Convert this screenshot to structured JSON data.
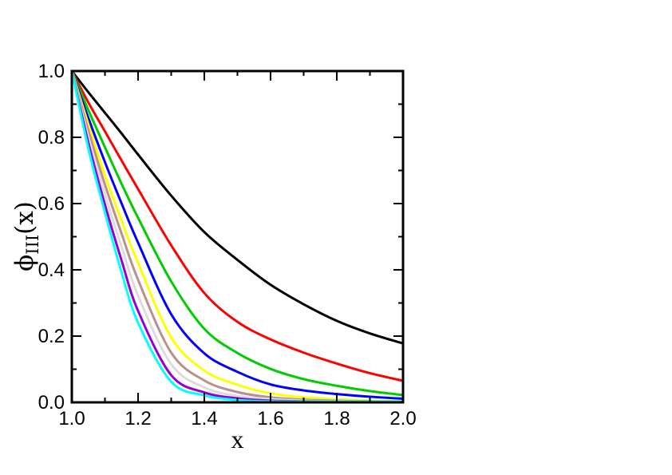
{
  "figure": {
    "background": "#ffffff",
    "frame_color": "#000000",
    "tick_color": "#000000"
  },
  "chart_data": {
    "type": "line",
    "title": "",
    "xlabel": "x",
    "ylabel": "ϕ_III(x)",
    "ylabel_parts": {
      "symbol": "ϕ",
      "subscript": "III",
      "suffix": "(x)"
    },
    "xlim": [
      1.0,
      2.0
    ],
    "ylim": [
      0.0,
      1.0
    ],
    "grid": false,
    "legend_position": "none",
    "x_major_ticks": [
      1.0,
      1.2,
      1.4,
      1.6,
      1.8,
      2.0
    ],
    "x_tick_labels": [
      "1.0",
      "1.2",
      "1.4",
      "1.6",
      "1.8",
      "2.0"
    ],
    "x_minor_ticks": [
      1.1,
      1.3,
      1.5,
      1.7,
      1.9
    ],
    "y_major_ticks": [
      0.0,
      0.2,
      0.4,
      0.6,
      0.8,
      1.0
    ],
    "y_tick_labels": [
      "0.0",
      "0.2",
      "0.4",
      "0.6",
      "0.8",
      "1.0"
    ],
    "y_minor_ticks": [
      0.1,
      0.3,
      0.5,
      0.7,
      0.9
    ],
    "x": [
      1.0,
      1.05,
      1.1,
      1.15,
      1.2,
      1.3,
      1.4,
      1.5,
      1.6,
      1.7,
      1.8,
      1.9,
      2.0
    ],
    "series": [
      {
        "name": "black",
        "color": "#000000",
        "values": [
          1.0,
          0.936,
          0.874,
          0.812,
          0.748,
          0.624,
          0.514,
          0.43,
          0.355,
          0.296,
          0.246,
          0.208,
          0.178
        ]
      },
      {
        "name": "red",
        "color": "#ff0000",
        "values": [
          1.0,
          0.905,
          0.818,
          0.73,
          0.644,
          0.474,
          0.33,
          0.243,
          0.19,
          0.15,
          0.117,
          0.088,
          0.065
        ]
      },
      {
        "name": "green",
        "color": "#00cc00",
        "values": [
          1.0,
          0.882,
          0.77,
          0.66,
          0.557,
          0.365,
          0.222,
          0.149,
          0.101,
          0.07,
          0.05,
          0.034,
          0.022
        ]
      },
      {
        "name": "blue",
        "color": "#0000ff",
        "values": [
          1.0,
          0.858,
          0.725,
          0.601,
          0.482,
          0.266,
          0.148,
          0.092,
          0.054,
          0.036,
          0.025,
          0.017,
          0.011
        ]
      },
      {
        "name": "yellow",
        "color": "#ffff00",
        "values": [
          1.0,
          0.838,
          0.685,
          0.549,
          0.421,
          0.196,
          0.096,
          0.053,
          0.027,
          0.015,
          0.009,
          0.005,
          0.003
        ]
      },
      {
        "name": "brown",
        "color": "#bc8f8f",
        "values": [
          1.0,
          0.82,
          0.657,
          0.51,
          0.37,
          0.15,
          0.066,
          0.031,
          0.015,
          0.008,
          0.005,
          0.003,
          0.002
        ]
      },
      {
        "name": "grey",
        "color": "#dcdcdc",
        "values": [
          1.0,
          0.801,
          0.628,
          0.47,
          0.322,
          0.115,
          0.045,
          0.019,
          0.01,
          0.005,
          0.003,
          0.002,
          0.001
        ]
      },
      {
        "name": "violet",
        "color": "#9400d3",
        "values": [
          1.0,
          0.783,
          0.597,
          0.429,
          0.276,
          0.082,
          0.03,
          0.012,
          0.005,
          0.003,
          0.002,
          0.001,
          0.001
        ]
      },
      {
        "name": "cyan",
        "color": "#00ffff",
        "values": [
          1.0,
          0.766,
          0.573,
          0.393,
          0.24,
          0.062,
          0.021,
          0.007,
          0.003,
          0.002,
          0.001,
          0.001,
          0.001
        ]
      }
    ]
  }
}
